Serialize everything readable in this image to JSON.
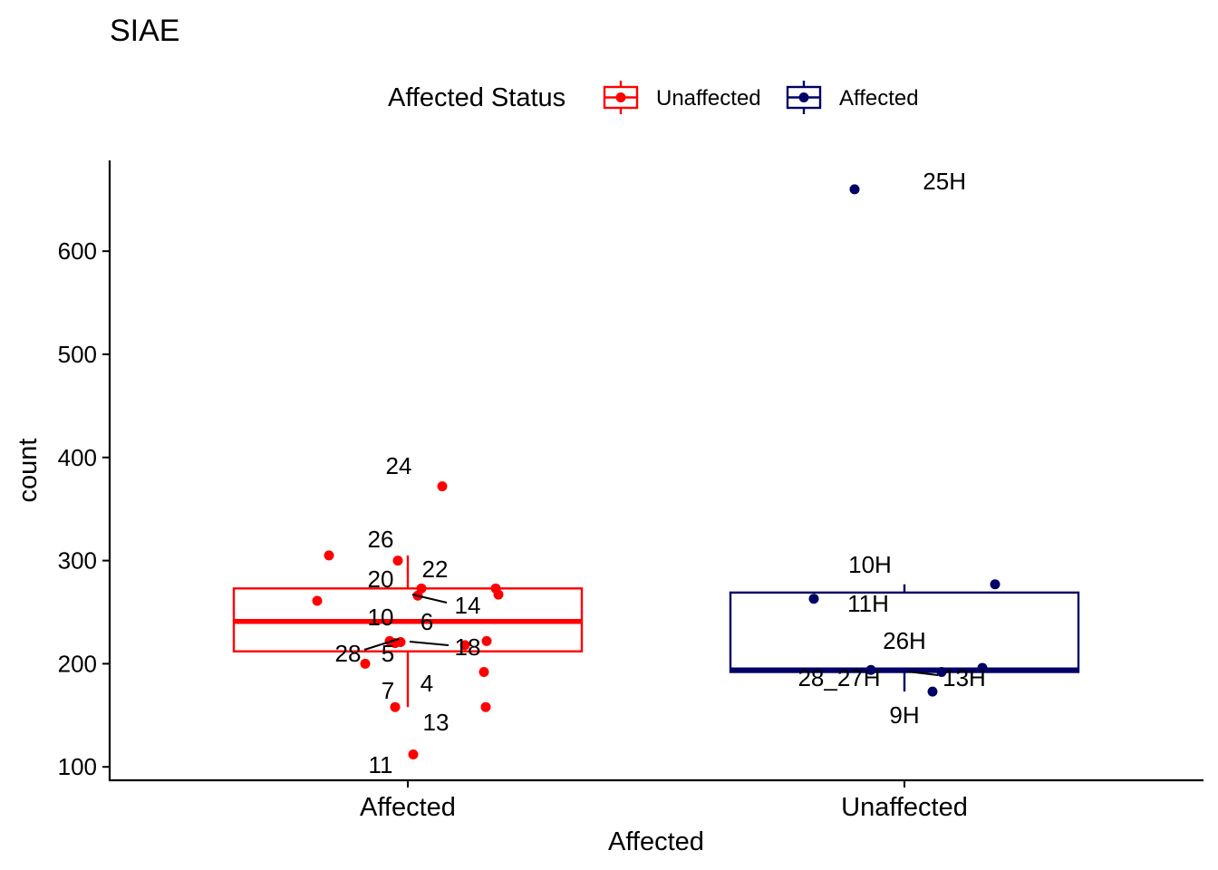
{
  "chart_data": {
    "type": "box",
    "title": "SIAE",
    "xlabel": "Affected",
    "ylabel": "count",
    "ylim": [
      87,
      688
    ],
    "yticks": [
      100,
      200,
      300,
      400,
      500,
      600
    ],
    "legend": {
      "title": "Affected Status",
      "placement": "top",
      "entries": [
        {
          "label": "Unaffected",
          "color": "#ff0000"
        },
        {
          "label": "Affected",
          "color": "#000066"
        }
      ]
    },
    "categories": [
      "Affected",
      "Unaffected"
    ],
    "boxes": [
      {
        "category": "Affected",
        "color": "#ff0000",
        "q1": 212,
        "median": 241,
        "q3": 273,
        "whisker_low": 158,
        "whisker_high": 305
      },
      {
        "category": "Unaffected",
        "color": "#000066",
        "q1": 192,
        "median": 194,
        "q3": 269,
        "whisker_low": 173,
        "whisker_high": 277
      }
    ],
    "points": [
      {
        "category": "Affected",
        "label": "24",
        "value": 372
      },
      {
        "category": "Affected",
        "label": "26",
        "value": 305
      },
      {
        "category": "Affected",
        "label": "",
        "value": 300
      },
      {
        "category": "Affected",
        "label": "22",
        "value": 273
      },
      {
        "category": "Affected",
        "label": "20",
        "value": 266
      },
      {
        "category": "Affected",
        "label": "14",
        "value": 273
      },
      {
        "category": "Affected",
        "label": "",
        "value": 267
      },
      {
        "category": "Affected",
        "label": "",
        "value": 261
      },
      {
        "category": "Affected",
        "label": "10",
        "value": 222
      },
      {
        "category": "Affected",
        "label": "6",
        "value": 221
      },
      {
        "category": "Affected",
        "label": "18",
        "value": 222
      },
      {
        "category": "Affected",
        "label": "",
        "value": 218
      },
      {
        "category": "Affected",
        "label": "5",
        "value": 220
      },
      {
        "category": "Affected",
        "label": "28",
        "value": 200
      },
      {
        "category": "Affected",
        "label": "4",
        "value": 192
      },
      {
        "category": "Affected",
        "label": "7",
        "value": 158
      },
      {
        "category": "Affected",
        "label": "13",
        "value": 158
      },
      {
        "category": "Affected",
        "label": "11",
        "value": 112
      },
      {
        "category": "Unaffected",
        "label": "25H",
        "value": 660
      },
      {
        "category": "Unaffected",
        "label": "10H",
        "value": 277
      },
      {
        "category": "Unaffected",
        "label": "11H",
        "value": 263
      },
      {
        "category": "Unaffected",
        "label": "26H",
        "value": 196
      },
      {
        "category": "Unaffected",
        "label": "28_27H",
        "value": 194
      },
      {
        "category": "Unaffected",
        "label": "13H",
        "value": 192
      },
      {
        "category": "Unaffected",
        "label": "9H",
        "value": 173
      }
    ]
  }
}
